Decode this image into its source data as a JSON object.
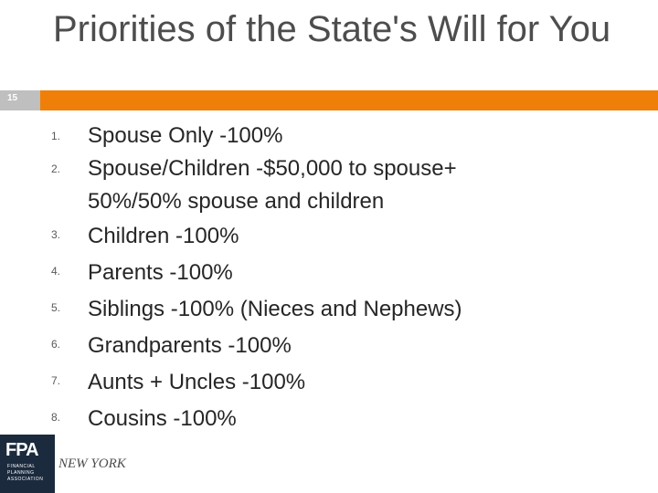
{
  "slide": {
    "number": "15",
    "title": "Priorities of the State's Will for You",
    "accent_color": "#f07f09",
    "number_box_color": "#bfbfbf"
  },
  "list": [
    {
      "num": "1.",
      "lines": [
        "Spouse Only -100%"
      ]
    },
    {
      "num": "2.",
      "lines": [
        "Spouse/Children -$50,000 to spouse+",
        "50%/50% spouse and children"
      ]
    },
    {
      "num": "3.",
      "lines": [
        "Children -100%"
      ]
    },
    {
      "num": "4.",
      "lines": [
        "Parents -100%"
      ]
    },
    {
      "num": "5.",
      "lines": [
        "Siblings -100% (Nieces and Nephews)"
      ]
    },
    {
      "num": "6.",
      "lines": [
        "Grandparents -100%"
      ]
    },
    {
      "num": "7.",
      "lines": [
        "Aunts + Uncles -100%"
      ]
    },
    {
      "num": "8.",
      "lines": [
        "Cousins -100%"
      ]
    }
  ],
  "footer": {
    "logo_mark": "FPA",
    "logo_subtext": "FINANCIAL PLANNING ASSOCIATION",
    "chapter": "NEW YORK"
  }
}
